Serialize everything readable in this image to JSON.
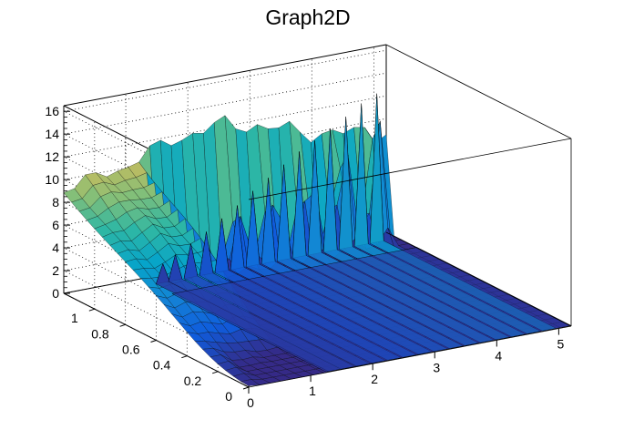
{
  "chart_data": {
    "type": "surface",
    "title": "Graph2D",
    "xlabel": "",
    "ylabel": "",
    "zlabel": "",
    "xlim": [
      0,
      5.2
    ],
    "ylim": [
      0,
      1.2
    ],
    "zlim": [
      0,
      16.5
    ],
    "x_ticks": [
      "0",
      "1",
      "2",
      "3",
      "4",
      "5"
    ],
    "y_ticks": [
      "0",
      "0.2",
      "0.4",
      "0.6",
      "0.8",
      "1"
    ],
    "z_ticks": [
      "0",
      "2",
      "4",
      "6",
      "8",
      "10",
      "12",
      "14",
      "16"
    ],
    "colormap": [
      "#352a87",
      "#0f5cdd",
      "#1481d6",
      "#06a4ca",
      "#2eb7a4",
      "#87bf77",
      "#d1bb59",
      "#fec832",
      "#f9fb0e"
    ],
    "grid": true,
    "surface_shape": "Smooth ridge rising from about 9 at low x toward about 13 near x = 2.3 along the back edge; trough near 0 in the front region around x = 0.8–2, y = 0.2–0.4; for x > 1.2 the front strip drops to 0 with sharp spikes along y ≈ 1.1 growing from about 2 at x = 1.4 to about 13 at x = 4.9.",
    "grid_points": {
      "nx": 30,
      "ny": 24
    },
    "spike_x": [
      1.4,
      1.6,
      1.85,
      2.1,
      2.35,
      2.6,
      2.85,
      3.1,
      3.35,
      3.6,
      3.85,
      4.1,
      4.35,
      4.6,
      4.85
    ],
    "spike_z": [
      1.7,
      2.3,
      3.0,
      3.8,
      4.7,
      5.6,
      6.6,
      7.5,
      8.4,
      9.3,
      10.0,
      10.8,
      11.6,
      12.5,
      13.1
    ]
  }
}
